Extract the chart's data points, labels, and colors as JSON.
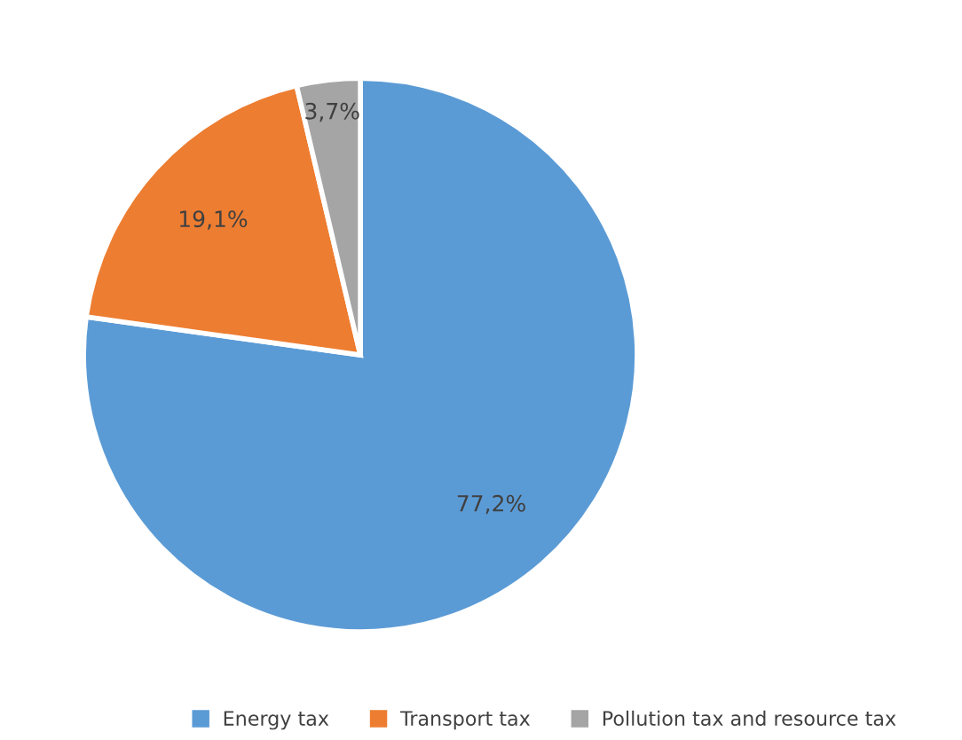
{
  "chart_data": {
    "type": "pie",
    "categories": [
      "Energy tax",
      "Transport tax",
      "Pollution tax and resource tax"
    ],
    "values": [
      77.2,
      19.1,
      3.7
    ],
    "colors": [
      "#5b9bd5",
      "#ed7d31",
      "#a5a5a5"
    ],
    "value_labels": [
      "77,2%",
      "19,1%",
      "3,7%"
    ],
    "legend": "bottom"
  }
}
